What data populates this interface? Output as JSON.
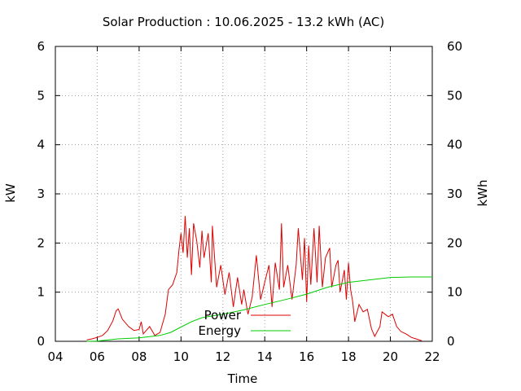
{
  "chart_data": {
    "type": "line",
    "title": "Solar Production : 10.06.2025 - 13.2 kWh (AC)",
    "xlabel": "Time",
    "ylabel_left": "kW",
    "ylabel_right": "kWh",
    "x_ticks": [
      "04",
      "06",
      "08",
      "10",
      "12",
      "14",
      "16",
      "18",
      "20",
      "22"
    ],
    "y_left_ticks": [
      "0",
      "1",
      "2",
      "3",
      "4",
      "5",
      "6"
    ],
    "y_right_ticks": [
      "0",
      "10",
      "20",
      "30",
      "40",
      "50",
      "60"
    ],
    "xlim": [
      4,
      22
    ],
    "ylim_left": [
      0,
      6
    ],
    "ylim_right": [
      0,
      60
    ],
    "grid": true,
    "legend_position": "bottom-center",
    "series": [
      {
        "name": "Power",
        "axis": "left",
        "color": "#dd0000",
        "points": [
          [
            5.5,
            0.03
          ],
          [
            5.75,
            0.05
          ],
          [
            6.0,
            0.08
          ],
          [
            6.25,
            0.12
          ],
          [
            6.5,
            0.22
          ],
          [
            6.75,
            0.42
          ],
          [
            6.9,
            0.62
          ],
          [
            7.0,
            0.66
          ],
          [
            7.2,
            0.45
          ],
          [
            7.5,
            0.3
          ],
          [
            7.75,
            0.22
          ],
          [
            8.0,
            0.24
          ],
          [
            8.1,
            0.4
          ],
          [
            8.2,
            0.15
          ],
          [
            8.5,
            0.3
          ],
          [
            8.75,
            0.12
          ],
          [
            9.0,
            0.18
          ],
          [
            9.25,
            0.55
          ],
          [
            9.4,
            1.05
          ],
          [
            9.6,
            1.15
          ],
          [
            9.8,
            1.4
          ],
          [
            9.9,
            1.85
          ],
          [
            10.0,
            2.2
          ],
          [
            10.1,
            1.8
          ],
          [
            10.2,
            2.55
          ],
          [
            10.3,
            1.7
          ],
          [
            10.4,
            2.3
          ],
          [
            10.5,
            1.35
          ],
          [
            10.6,
            2.4
          ],
          [
            10.75,
            2.05
          ],
          [
            10.9,
            1.5
          ],
          [
            11.0,
            2.25
          ],
          [
            11.1,
            1.7
          ],
          [
            11.3,
            2.2
          ],
          [
            11.45,
            1.2
          ],
          [
            11.5,
            2.35
          ],
          [
            11.7,
            1.1
          ],
          [
            11.9,
            1.55
          ],
          [
            12.1,
            0.95
          ],
          [
            12.3,
            1.4
          ],
          [
            12.5,
            0.7
          ],
          [
            12.7,
            1.3
          ],
          [
            12.9,
            0.75
          ],
          [
            13.0,
            1.05
          ],
          [
            13.2,
            0.55
          ],
          [
            13.4,
            0.9
          ],
          [
            13.6,
            1.75
          ],
          [
            13.8,
            0.85
          ],
          [
            14.0,
            1.2
          ],
          [
            14.2,
            1.55
          ],
          [
            14.35,
            0.7
          ],
          [
            14.5,
            1.6
          ],
          [
            14.7,
            1.05
          ],
          [
            14.8,
            2.4
          ],
          [
            14.9,
            1.1
          ],
          [
            15.1,
            1.55
          ],
          [
            15.3,
            0.85
          ],
          [
            15.5,
            1.55
          ],
          [
            15.6,
            2.3
          ],
          [
            15.8,
            1.25
          ],
          [
            15.9,
            2.1
          ],
          [
            16.0,
            0.8
          ],
          [
            16.1,
            1.95
          ],
          [
            16.2,
            1.15
          ],
          [
            16.35,
            2.3
          ],
          [
            16.5,
            1.2
          ],
          [
            16.6,
            2.35
          ],
          [
            16.75,
            1.1
          ],
          [
            16.9,
            1.7
          ],
          [
            17.1,
            1.9
          ],
          [
            17.2,
            1.1
          ],
          [
            17.4,
            1.55
          ],
          [
            17.5,
            1.65
          ],
          [
            17.6,
            1.0
          ],
          [
            17.8,
            1.45
          ],
          [
            17.9,
            0.85
          ],
          [
            18.0,
            1.6
          ],
          [
            18.1,
            1.05
          ],
          [
            18.2,
            0.8
          ],
          [
            18.3,
            0.4
          ],
          [
            18.5,
            0.75
          ],
          [
            18.7,
            0.6
          ],
          [
            18.9,
            0.65
          ],
          [
            19.1,
            0.25
          ],
          [
            19.25,
            0.1
          ],
          [
            19.5,
            0.3
          ],
          [
            19.6,
            0.6
          ],
          [
            19.75,
            0.55
          ],
          [
            19.9,
            0.5
          ],
          [
            20.1,
            0.55
          ],
          [
            20.3,
            0.3
          ],
          [
            20.5,
            0.2
          ],
          [
            20.75,
            0.15
          ],
          [
            21.0,
            0.08
          ],
          [
            21.3,
            0.04
          ],
          [
            21.5,
            0.01
          ]
        ]
      },
      {
        "name": "Energy",
        "axis": "right",
        "color": "#00cc00",
        "points": [
          [
            5.5,
            0.0
          ],
          [
            6.0,
            0.05
          ],
          [
            7.0,
            0.5
          ],
          [
            8.0,
            0.7
          ],
          [
            9.0,
            1.2
          ],
          [
            9.5,
            1.8
          ],
          [
            10.0,
            2.9
          ],
          [
            10.5,
            4.0
          ],
          [
            11.0,
            4.8
          ],
          [
            12.0,
            5.5
          ],
          [
            13.0,
            6.4
          ],
          [
            14.0,
            7.5
          ],
          [
            15.0,
            8.5
          ],
          [
            16.0,
            9.6
          ],
          [
            17.0,
            11.0
          ],
          [
            18.0,
            12.0
          ],
          [
            19.0,
            12.5
          ],
          [
            20.0,
            13.0
          ],
          [
            21.0,
            13.1
          ],
          [
            22.0,
            13.1
          ]
        ]
      }
    ]
  }
}
